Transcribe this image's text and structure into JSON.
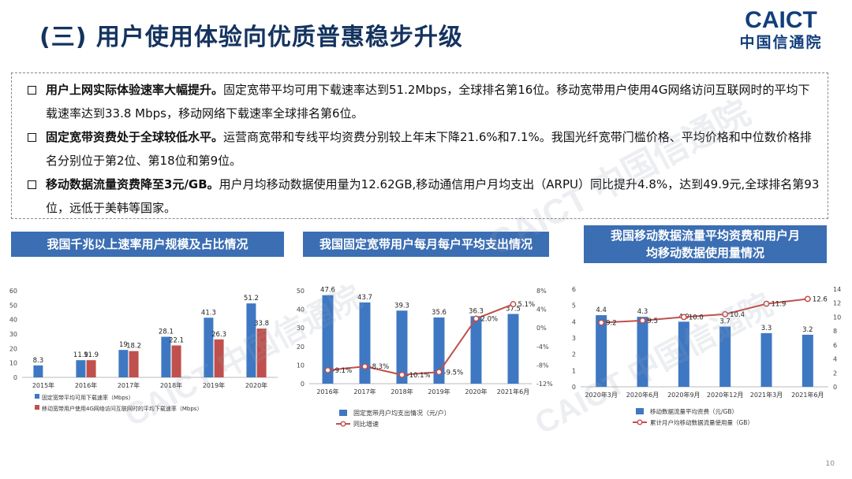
{
  "page_title": "(三) 用户使用体验向优质普惠稳步升级",
  "logo": {
    "en": "CAICT",
    "cn": "中国信通院"
  },
  "bullets": [
    {
      "bold": "用户上网实际体验速率大幅提升。",
      "text": "固定宽带平均可用下载速率达到51.2Mbps，全球排名第16位。移动宽带用户使用4G网络访问互联网时的平均下载速率达到33.8 Mbps，移动网络下载速率全球排名第6位。"
    },
    {
      "bold": "固定宽带资费处于全球较低水平。",
      "text": "运营商宽带和专线平均资费分别较上年末下降21.6%和7.1%。我国光纤宽带门槛价格、平均价格和中位数价格排名分别位于第2位、第18位和第9位。"
    },
    {
      "bold": "移动数据流量资费降至3元/GB。",
      "text": "用户月均移动数据使用量为12.62GB,移动通信用户月均支出（ARPU）同比提升4.8%，达到49.9元,全球排名第93位，远低于美韩等国家。"
    }
  ],
  "panels": {
    "p1_title": "我国千兆以上速率用户规模及占比情况",
    "p2_title": "我国固定宽带用户每月每户平均支出情况",
    "p3_title": "我国移动数据流量平均资费和用户月均移动数据使用量情况"
  },
  "chart_data": [
    {
      "type": "bar",
      "categories": [
        "2015年",
        "2016年",
        "2017年",
        "2018年",
        "2019年",
        "2020年"
      ],
      "series": [
        {
          "name": "固定宽带平均可用下载速率（Mbps）",
          "values": [
            8.3,
            11.9,
            19,
            28.1,
            41.3,
            51.2
          ],
          "labels": [
            "8.3",
            "11.9",
            "19",
            "28.1",
            "41.3",
            "51.2"
          ],
          "color": "#3f78c2"
        },
        {
          "name": "移动宽带用户使用4G网络访问互联网时的平均下载速率（Mbps）",
          "values": [
            null,
            11.9,
            18.2,
            22.1,
            26.3,
            33.8
          ],
          "labels": [
            "",
            "11.9",
            "18.2",
            "22.1",
            "26.3",
            "33.8"
          ],
          "color": "#c0504d"
        }
      ],
      "yticks": [
        "0",
        "10",
        "20",
        "30",
        "40",
        "50",
        "60"
      ],
      "ylim": [
        0,
        60
      ]
    },
    {
      "type": "bar+line",
      "categories": [
        "2016年",
        "2017年",
        "2018年",
        "2019年",
        "2020年",
        "2021年6月"
      ],
      "series": [
        {
          "name": "固定宽带月户均支出情况（元/户）",
          "values": [
            47.6,
            43.7,
            39.3,
            35.6,
            36.3,
            37.5
          ],
          "labels": [
            "47.6",
            "43.7",
            "39.3",
            "35.6",
            "36.3",
            "37.5"
          ],
          "color": "#3f78c2",
          "axis": "left"
        },
        {
          "name": "同比增速",
          "values": [
            -9.1,
            -8.3,
            -10.1,
            -9.5,
            2.0,
            5.1
          ],
          "labels": [
            "-9.1%",
            "-8.3%",
            "-10.1%",
            "-9.5%",
            "2.0%",
            "5.1%"
          ],
          "color": "#c0504d",
          "axis": "right"
        }
      ],
      "yticks_left": [
        "0",
        "10",
        "20",
        "30",
        "40",
        "50"
      ],
      "yticks_right": [
        "-12%",
        "-8%",
        "-4%",
        "0%",
        "4%",
        "8%"
      ],
      "ylim_left": [
        0,
        50
      ],
      "ylim_right": [
        -12,
        8
      ]
    },
    {
      "type": "bar+line",
      "categories": [
        "2020年3月",
        "2020年6月",
        "2020年9月",
        "2020年12月",
        "2021年3月",
        "2021年6月"
      ],
      "series": [
        {
          "name": "移动数据流量平均资费（元/GB）",
          "values": [
            4.4,
            4.3,
            4.0,
            3.7,
            3.3,
            3.2
          ],
          "labels": [
            "4.4",
            "4.3",
            "4.0",
            "3.7",
            "3.3",
            "3.2"
          ],
          "color": "#3f78c2",
          "axis": "left"
        },
        {
          "name": "累计月户均移动数据流量使用量（GB）",
          "values": [
            9.2,
            9.5,
            10.0,
            10.4,
            11.9,
            12.6
          ],
          "labels": [
            "9.2",
            "9.5",
            "10.0",
            "10.4",
            "11.9",
            "12.6"
          ],
          "color": "#c0504d",
          "axis": "right"
        }
      ],
      "yticks_left": [
        "0",
        "1",
        "2",
        "3",
        "4",
        "5",
        "6"
      ],
      "yticks_right": [
        "0",
        "2",
        "4",
        "6",
        "8",
        "10",
        "12",
        "14"
      ],
      "ylim_left": [
        0,
        6
      ],
      "ylim_right": [
        0,
        14
      ]
    }
  ],
  "page_number": "10"
}
